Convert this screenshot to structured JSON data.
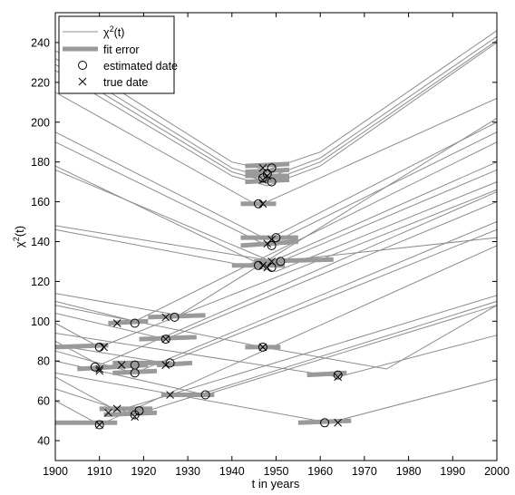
{
  "chart_data": {
    "type": "line",
    "xlabel": "t in years",
    "ylabel": "χ",
    "ylabel_sup": "2",
    "ylabel_suffix": "(t)",
    "xlim": [
      1900,
      2000
    ],
    "ylim": [
      30,
      255
    ],
    "xticks": [
      1900,
      1910,
      1920,
      1930,
      1940,
      1950,
      1960,
      1970,
      1980,
      1990,
      2000
    ],
    "yticks": [
      40,
      60,
      80,
      100,
      120,
      140,
      160,
      180,
      200,
      220,
      240
    ],
    "legend": {
      "placement": "top-left",
      "entries": [
        {
          "label": "χ",
          "sup": "2",
          "suffix": "(t)",
          "style": "thin-line"
        },
        {
          "label": "fit error",
          "style": "thick-line"
        },
        {
          "label": "estimated date",
          "style": "circle"
        },
        {
          "label": "true date",
          "style": "cross"
        }
      ]
    },
    "colors": {
      "curve": "#8c8c8c",
      "fit_error": "#9a9a9a",
      "marker": "#000000"
    },
    "curves": [
      {
        "x": [
          1900,
          1940,
          1948,
          1960,
          2000
        ],
        "y": [
          236,
          180,
          176,
          185,
          246
        ]
      },
      {
        "x": [
          1900,
          1940,
          1948,
          1960,
          2000
        ],
        "y": [
          232,
          177,
          172,
          182,
          243
        ]
      },
      {
        "x": [
          1900,
          1940,
          1948,
          1960,
          2000
        ],
        "y": [
          229,
          175,
          170,
          180,
          241
        ]
      },
      {
        "x": [
          1900,
          1940,
          1948,
          1960,
          2000
        ],
        "y": [
          226,
          173,
          168,
          178,
          240
        ]
      },
      {
        "x": [
          1900,
          1946,
          2000
        ],
        "y": [
          215,
          158,
          212
        ]
      },
      {
        "x": [
          1900,
          1948,
          2000
        ],
        "y": [
          195,
          141,
          200
        ]
      },
      {
        "x": [
          1900,
          1948,
          2000
        ],
        "y": [
          190,
          138,
          195
        ]
      },
      {
        "x": [
          1900,
          1947,
          2000
        ],
        "y": [
          178,
          128,
          180
        ]
      },
      {
        "x": [
          1900,
          1950,
          2000
        ],
        "y": [
          176,
          129,
          176
        ]
      },
      {
        "x": [
          1900,
          1950,
          2000
        ],
        "y": [
          148,
          130,
          142
        ]
      },
      {
        "x": [
          1900,
          1950,
          2000
        ],
        "y": [
          146,
          125,
          170
        ]
      },
      {
        "x": [
          1900,
          1928,
          2000
        ],
        "y": [
          114,
          103,
          202
        ]
      },
      {
        "x": [
          1900,
          1918,
          2000
        ],
        "y": [
          110,
          100,
          190
        ]
      },
      {
        "x": [
          1900,
          1910,
          2000
        ],
        "y": [
          99,
          87,
          166
        ]
      },
      {
        "x": [
          1900,
          1925,
          2000
        ],
        "y": [
          104,
          91,
          160
        ]
      },
      {
        "x": [
          1900,
          1947,
          1975,
          2000
        ],
        "y": [
          108,
          87,
          76,
          108
        ]
      },
      {
        "x": [
          1900,
          1910,
          2000
        ],
        "y": [
          90,
          78,
          165
        ]
      },
      {
        "x": [
          1900,
          1918,
          2000
        ],
        "y": [
          85,
          74,
          150
        ]
      },
      {
        "x": [
          1900,
          1925,
          2000
        ],
        "y": [
          88,
          79,
          146
        ]
      },
      {
        "x": [
          1900,
          1964,
          2000
        ],
        "y": [
          94,
          72,
          93
        ]
      },
      {
        "x": [
          1900,
          1934,
          2000
        ],
        "y": [
          80,
          63,
          108
        ]
      },
      {
        "x": [
          1900,
          1914,
          2000
        ],
        "y": [
          72,
          55,
          113
        ]
      },
      {
        "x": [
          1900,
          1918,
          2000
        ],
        "y": [
          66,
          53,
          110
        ]
      },
      {
        "x": [
          1900,
          1910,
          2000
        ],
        "y": [
          60,
          48,
          138
        ]
      },
      {
        "x": [
          1900,
          1962,
          2000
        ],
        "y": [
          74,
          49,
          71
        ]
      }
    ],
    "fit_errors": [
      {
        "x": [
          1943,
          1953
        ],
        "y": [
          178,
          179
        ]
      },
      {
        "x": [
          1943,
          1953
        ],
        "y": [
          175,
          176
        ]
      },
      {
        "x": [
          1943,
          1953
        ],
        "y": [
          173,
          173
        ]
      },
      {
        "x": [
          1943,
          1953
        ],
        "y": [
          170,
          171
        ]
      },
      {
        "x": [
          1942,
          1950
        ],
        "y": [
          159,
          159
        ]
      },
      {
        "x": [
          1942,
          1955
        ],
        "y": [
          142,
          142
        ]
      },
      {
        "x": [
          1942,
          1955
        ],
        "y": [
          138,
          140
        ]
      },
      {
        "x": [
          1940,
          1952
        ],
        "y": [
          128,
          128
        ]
      },
      {
        "x": [
          1945,
          1963
        ],
        "y": [
          130,
          131
        ]
      },
      {
        "x": [
          1921,
          1934
        ],
        "y": [
          102,
          103
        ]
      },
      {
        "x": [
          1912,
          1921
        ],
        "y": [
          99,
          100
        ]
      },
      {
        "x": [
          1900,
          1912
        ],
        "y": [
          87,
          88
        ]
      },
      {
        "x": [
          1919,
          1932
        ],
        "y": [
          91,
          92
        ]
      },
      {
        "x": [
          1943,
          1951
        ],
        "y": [
          87,
          87
        ]
      },
      {
        "x": [
          1905,
          1921
        ],
        "y": [
          76,
          78
        ]
      },
      {
        "x": [
          1913,
          1923
        ],
        "y": [
          74,
          75
        ]
      },
      {
        "x": [
          1923,
          1931
        ],
        "y": [
          78,
          79
        ]
      },
      {
        "x": [
          1913,
          1925
        ],
        "y": [
          79,
          79
        ]
      },
      {
        "x": [
          1957,
          1966
        ],
        "y": [
          73,
          74
        ]
      },
      {
        "x": [
          1924,
          1936
        ],
        "y": [
          63,
          63
        ]
      },
      {
        "x": [
          1910,
          1922
        ],
        "y": [
          56,
          56
        ]
      },
      {
        "x": [
          1911,
          1923
        ],
        "y": [
          53,
          54
        ]
      },
      {
        "x": [
          1900,
          1914
        ],
        "y": [
          49,
          49
        ]
      },
      {
        "x": [
          1955,
          1967
        ],
        "y": [
          49,
          50
        ]
      }
    ],
    "estimated_dates": [
      {
        "x": 1949,
        "y": 177
      },
      {
        "x": 1948,
        "y": 174
      },
      {
        "x": 1947,
        "y": 172
      },
      {
        "x": 1949,
        "y": 170
      },
      {
        "x": 1946,
        "y": 159
      },
      {
        "x": 1950,
        "y": 142
      },
      {
        "x": 1949,
        "y": 138
      },
      {
        "x": 1946,
        "y": 128
      },
      {
        "x": 1949,
        "y": 127
      },
      {
        "x": 1951,
        "y": 130
      },
      {
        "x": 1927,
        "y": 102
      },
      {
        "x": 1918,
        "y": 99
      },
      {
        "x": 1910,
        "y": 87
      },
      {
        "x": 1925,
        "y": 91
      },
      {
        "x": 1947,
        "y": 87
      },
      {
        "x": 1909,
        "y": 77
      },
      {
        "x": 1918,
        "y": 78
      },
      {
        "x": 1918,
        "y": 74
      },
      {
        "x": 1926,
        "y": 79
      },
      {
        "x": 1964,
        "y": 73
      },
      {
        "x": 1934,
        "y": 63
      },
      {
        "x": 1919,
        "y": 55
      },
      {
        "x": 1918,
        "y": 53
      },
      {
        "x": 1910,
        "y": 48
      },
      {
        "x": 1961,
        "y": 49
      }
    ],
    "true_dates": [
      {
        "x": 1947,
        "y": 177
      },
      {
        "x": 1948,
        "y": 173
      },
      {
        "x": 1947,
        "y": 171
      },
      {
        "x": 1947,
        "y": 159
      },
      {
        "x": 1949,
        "y": 141
      },
      {
        "x": 1948,
        "y": 139
      },
      {
        "x": 1947,
        "y": 128
      },
      {
        "x": 1948,
        "y": 127
      },
      {
        "x": 1949,
        "y": 130
      },
      {
        "x": 1925,
        "y": 102
      },
      {
        "x": 1914,
        "y": 99
      },
      {
        "x": 1911,
        "y": 87
      },
      {
        "x": 1925,
        "y": 91
      },
      {
        "x": 1947,
        "y": 87
      },
      {
        "x": 1910,
        "y": 75
      },
      {
        "x": 1910,
        "y": 76
      },
      {
        "x": 1915,
        "y": 78
      },
      {
        "x": 1925,
        "y": 78
      },
      {
        "x": 1964,
        "y": 72
      },
      {
        "x": 1926,
        "y": 63
      },
      {
        "x": 1914,
        "y": 56
      },
      {
        "x": 1912,
        "y": 54
      },
      {
        "x": 1918,
        "y": 52
      },
      {
        "x": 1910,
        "y": 48
      },
      {
        "x": 1964,
        "y": 49
      }
    ]
  }
}
